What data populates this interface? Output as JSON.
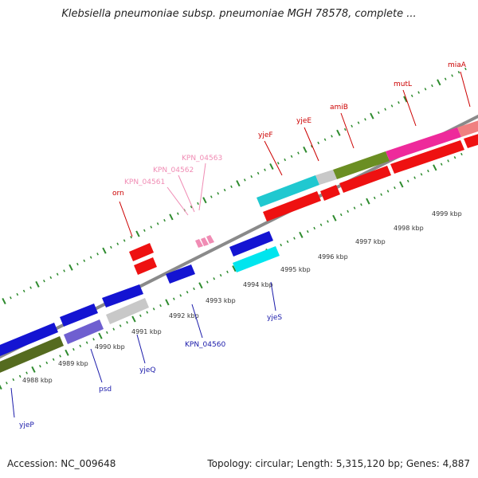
{
  "title": "Klebsiella pneumoniae subsp. pneumoniae MGH 78578, complete ...",
  "footer": {
    "accession": "Accession: NC_009648",
    "summary": "Topology: circular; Length: 5,315,120 bp; Genes: 4,887"
  },
  "colors": {
    "backbone": "#8a8a8a",
    "tick": "#2e8b2e",
    "label_red": "#cc0000",
    "label_blue": "#1a1aaa",
    "label_pink": "#f08cb4"
  },
  "scale": {
    "unit": "kbp",
    "labels": [
      "4988 kbp",
      "4989 kbp",
      "4990 kbp",
      "4991 kbp",
      "4992 kbp",
      "4993 kbp",
      "4994 kbp",
      "4995 kbp",
      "4996 kbp",
      "4997 kbp",
      "4998 kbp",
      "4999 kbp"
    ]
  },
  "genes": [
    {
      "name": "yjeP",
      "strand": "-",
      "color": "#1414d2"
    },
    {
      "name": "psd",
      "strand": "-",
      "color": "#1414d2"
    },
    {
      "name": "yjeQ",
      "strand": "-",
      "color": "#1414d2"
    },
    {
      "name": "KPN_04560",
      "strand": "-",
      "color": "#1414d2"
    },
    {
      "name": "yjeS",
      "strand": "-",
      "color": "#1414d2"
    },
    {
      "name": "orn",
      "strand": "+",
      "color": "#ee1111"
    },
    {
      "name": "KPN_04561",
      "strand": "+",
      "color": "#f08cb4"
    },
    {
      "name": "KPN_04562",
      "strand": "+",
      "color": "#f08cb4"
    },
    {
      "name": "KPN_04563",
      "strand": "+",
      "color": "#f08cb4"
    },
    {
      "name": "yjeF",
      "strand": "+",
      "color": "#ee1111"
    },
    {
      "name": "yjeE",
      "strand": "+",
      "color": "#ee1111"
    },
    {
      "name": "amiB",
      "strand": "+",
      "color": "#ee1111"
    },
    {
      "name": "mutL",
      "strand": "+",
      "color": "#ee1111"
    },
    {
      "name": "miaA",
      "strand": "+",
      "color": "#ee1111"
    }
  ]
}
